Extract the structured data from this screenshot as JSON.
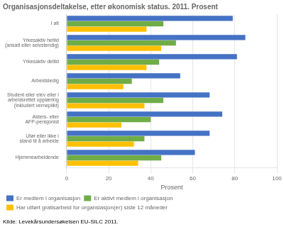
{
  "chart_data": {
    "type": "bar",
    "orientation": "horizontal",
    "title": "Organisasjonsdeltakelse, etter økonomisk status. 2011. Prosent",
    "categories": [
      "I alt",
      "Yrkesaktiv heltid\n(ansatt eller selvstendig)",
      "Yrkesaktiv deltid",
      "Arbeidsledig",
      "Student eller elev eller i\narbeidsrettet opplæring\n(inkludert verneplikt)",
      "Alders- eller\nAFP-pensjonist",
      "Ufør eller ikke i\nstand til å arbeide",
      "Hjemmearbeidende"
    ],
    "series": [
      {
        "name": "Er medlem i organisasjon",
        "color": "#4472C4",
        "values": [
          79,
          85,
          81,
          54,
          68,
          74,
          68,
          61
        ]
      },
      {
        "name": "Er aktivt medlem i organisasjon",
        "color": "#70AD47",
        "values": [
          46,
          52,
          44,
          31,
          46,
          40,
          37,
          45
        ]
      },
      {
        "name": "Har utført gratisarbeid for organsiasjon(er) siste 12 måneder",
        "color": "#FFC000",
        "values": [
          38,
          45,
          38,
          27,
          37,
          26,
          32,
          34
        ]
      }
    ],
    "xlabel": "Prosent",
    "xlim": [
      0,
      100
    ],
    "xticks": [
      0,
      20,
      40,
      60,
      80,
      100
    ],
    "grid": true,
    "legend": "bottom",
    "annotations": [
      "Kilde: Levekårsundersøkelsen EU-SILC 2011."
    ]
  }
}
